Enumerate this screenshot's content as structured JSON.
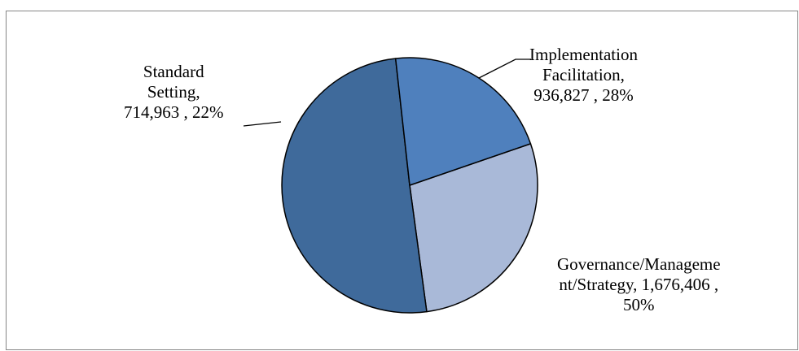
{
  "chart_data": {
    "type": "pie",
    "title": "",
    "slices": [
      {
        "name": "Implementation Facilitation",
        "value": 936827,
        "percent": 28,
        "color": "#a9b9d8",
        "label_lines": [
          "Implementation",
          "Facilitation,",
          "936,827 , 28%"
        ]
      },
      {
        "name": "Governance/Management/Strategy",
        "value": 1676406,
        "percent": 50,
        "color": "#3f6a9b",
        "label_lines": [
          "Governance/Manageme",
          "nt/Strategy,  1,676,406 ,",
          "50%"
        ]
      },
      {
        "name": "Standard Setting",
        "value": 714963,
        "percent": 22,
        "color": "#4f80bd",
        "label_lines": [
          "Standard",
          "Setting,",
          "714,963 , 22%"
        ]
      }
    ],
    "start_angle_deg": -19,
    "direction": "clockwise",
    "legend": "none"
  }
}
